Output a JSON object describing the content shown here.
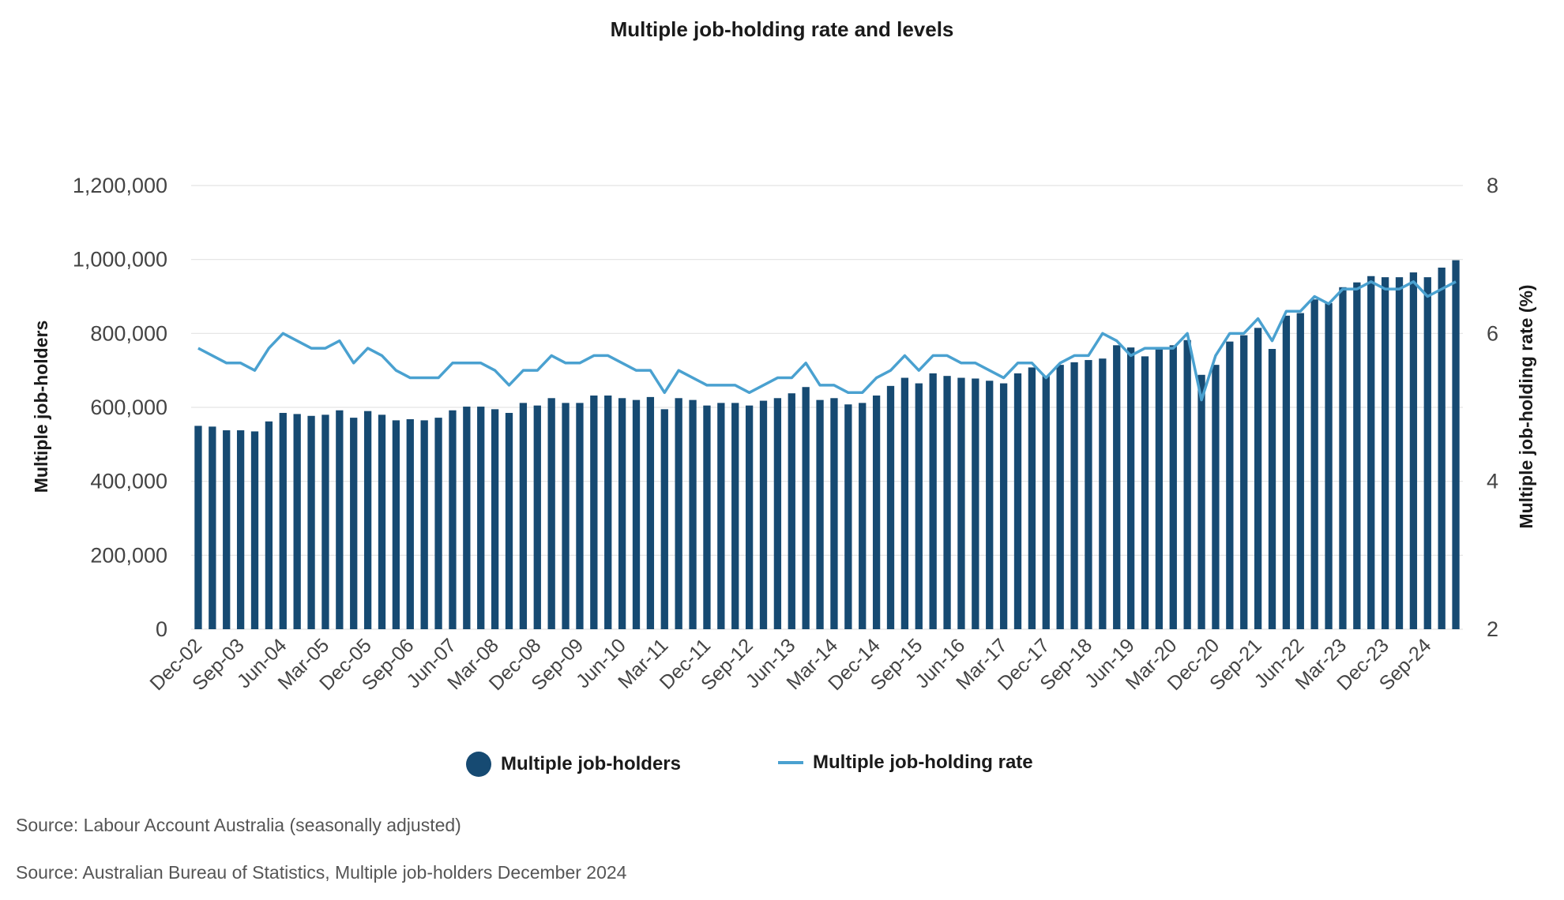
{
  "colors": {
    "bars": "#164a72",
    "line": "#4aa1d0",
    "grid": "#e3e3e3"
  },
  "chart_data": {
    "type": "bar",
    "title": "Multiple job-holding rate and levels",
    "ylabel": "Multiple job-holders",
    "y2label": "Multiple job-holding rate (%)",
    "ylim": [
      0,
      1200000
    ],
    "y2lim": [
      2,
      8
    ],
    "yticks": [
      "0",
      "200,000",
      "400,000",
      "600,000",
      "800,000",
      "1,000,000",
      "1,200,000"
    ],
    "y2ticks": [
      "2",
      "4",
      "6",
      "8"
    ],
    "x_tick_labels": [
      "Dec-02",
      "Sep-03",
      "Jun-04",
      "Mar-05",
      "Dec-05",
      "Sep-06",
      "Jun-07",
      "Mar-08",
      "Dec-08",
      "Sep-09",
      "Jun-10",
      "Mar-11",
      "Dec-11",
      "Sep-12",
      "Jun-13",
      "Mar-14",
      "Dec-14",
      "Sep-15",
      "Jun-16",
      "Mar-17",
      "Dec-17",
      "Sep-18",
      "Jun-19",
      "Mar-20",
      "Dec-20",
      "Sep-21",
      "Jun-22",
      "Mar-23",
      "Dec-23",
      "Sep-24"
    ],
    "grid": true,
    "legend_position": "bottom",
    "series": [
      {
        "name": "Multiple job-holders",
        "type": "bar",
        "values": [
          550000,
          548000,
          538000,
          538000,
          535000,
          562000,
          585000,
          582000,
          577000,
          580000,
          592000,
          572000,
          590000,
          580000,
          565000,
          568000,
          565000,
          572000,
          592000,
          602000,
          602000,
          595000,
          585000,
          612000,
          605000,
          625000,
          612000,
          612000,
          632000,
          632000,
          625000,
          620000,
          628000,
          595000,
          625000,
          620000,
          605000,
          612000,
          612000,
          605000,
          618000,
          625000,
          638000,
          655000,
          620000,
          625000,
          608000,
          612000,
          632000,
          658000,
          680000,
          665000,
          692000,
          685000,
          680000,
          678000,
          672000,
          665000,
          692000,
          708000,
          685000,
          715000,
          722000,
          728000,
          732000,
          768000,
          762000,
          738000,
          762000,
          768000,
          782000,
          688000,
          715000,
          778000,
          795000,
          815000,
          758000,
          848000,
          855000,
          892000,
          882000,
          925000,
          938000,
          955000,
          952000,
          952000,
          965000,
          952000,
          978000,
          998000
        ]
      },
      {
        "name": "Multiple job-holding rate",
        "type": "line",
        "values": [
          5.8,
          5.7,
          5.6,
          5.6,
          5.5,
          5.8,
          6.0,
          5.9,
          5.8,
          5.8,
          5.9,
          5.6,
          5.8,
          5.7,
          5.5,
          5.4,
          5.4,
          5.4,
          5.6,
          5.6,
          5.6,
          5.5,
          5.3,
          5.5,
          5.5,
          5.7,
          5.6,
          5.6,
          5.7,
          5.7,
          5.6,
          5.5,
          5.5,
          5.2,
          5.5,
          5.4,
          5.3,
          5.3,
          5.3,
          5.2,
          5.3,
          5.4,
          5.4,
          5.6,
          5.3,
          5.3,
          5.2,
          5.2,
          5.4,
          5.5,
          5.7,
          5.5,
          5.7,
          5.7,
          5.6,
          5.6,
          5.5,
          5.4,
          5.6,
          5.6,
          5.4,
          5.6,
          5.7,
          5.7,
          6.0,
          5.9,
          5.7,
          5.8,
          5.8,
          5.8,
          6.0,
          5.1,
          5.7,
          6.0,
          6.0,
          6.2,
          5.9,
          6.3,
          6.3,
          6.5,
          6.4,
          6.6,
          6.6,
          6.7,
          6.6,
          6.6,
          6.7,
          6.5,
          6.6,
          6.7
        ]
      }
    ]
  },
  "legend": {
    "bars_label": "Multiple job-holders",
    "line_label": "Multiple job-holding rate"
  },
  "sources": [
    "Source: Labour Account Australia (seasonally adjusted)",
    "Source: Australian Bureau of Statistics, Multiple job-holders December 2024"
  ]
}
